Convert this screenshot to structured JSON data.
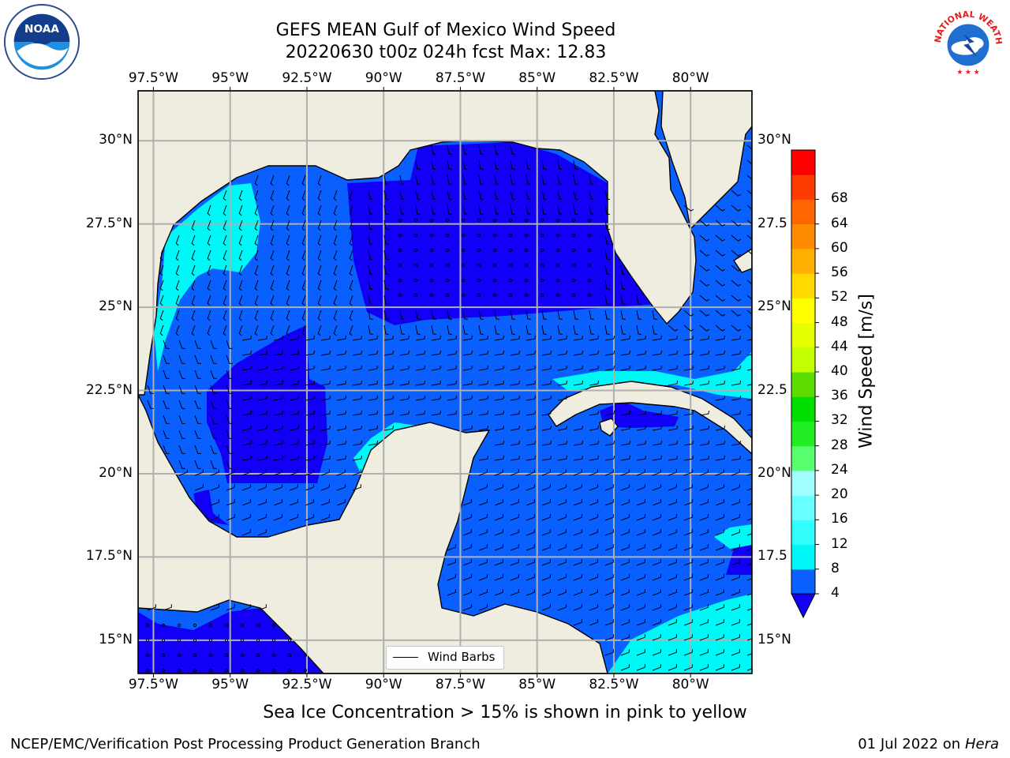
{
  "title_line1": "GEFS MEAN Gulf of Mexico Wind Speed",
  "title_line2": "20220630 t00z 024h fcst   Max: 12.83",
  "lon_ticks": [
    "97.5°W",
    "95°W",
    "92.5°W",
    "90°W",
    "87.5°W",
    "85°W",
    "82.5°W",
    "80°W"
  ],
  "lon_values": [
    -97.5,
    -95,
    -92.5,
    -90,
    -87.5,
    -85,
    -82.5,
    -80
  ],
  "lat_ticks": [
    "30°N",
    "27.5°N",
    "25°N",
    "22.5°N",
    "20°N",
    "17.5°N",
    "15°N"
  ],
  "lat_values": [
    30,
    27.5,
    25,
    22.5,
    20,
    17.5,
    15
  ],
  "lat_ticks_right": [
    "30°N",
    "27.5",
    "25°N",
    "22.5",
    "20°N",
    "17.5",
    "15°N"
  ],
  "extent": {
    "lon": [
      -98,
      -78
    ],
    "lat": [
      14,
      31.5
    ]
  },
  "colorbar": {
    "label": "Wind Speed [m/s]",
    "ticks": [
      "68",
      "64",
      "60",
      "56",
      "52",
      "48",
      "44",
      "40",
      "36",
      "32",
      "28",
      "24",
      "20",
      "16",
      "12",
      "8",
      "4"
    ],
    "levels": [
      4,
      8,
      12,
      16,
      20,
      24,
      28,
      32,
      36,
      40,
      44,
      48,
      52,
      56,
      60,
      64,
      68
    ],
    "colors": [
      "#0a5fff",
      "#00f7f7",
      "#34ffff",
      "#6affff",
      "#a1ffff",
      "#58ff6e",
      "#21ee22",
      "#00e000",
      "#5ddc00",
      "#c2ff00",
      "#e4ff00",
      "#ffff00",
      "#ffd900",
      "#ffb000",
      "#ff8c00",
      "#ff6600",
      "#ff3c00",
      "#ff0000"
    ],
    "under_color": "#1100f5",
    "extend": "min"
  },
  "legend_label": "Wind Barbs",
  "note": "Sea Ice Concentration > 15% is shown in pink to yellow",
  "footer_left": "NCEP/EMC/Verification Post Processing Product Generation Branch",
  "footer_date": "01 Jul 2022 on ",
  "footer_machine": "Hera",
  "land_color": "#efede0",
  "logos": {
    "left": "NOAA",
    "right_text": "NATIONAL WEATHER SERVICE"
  }
}
